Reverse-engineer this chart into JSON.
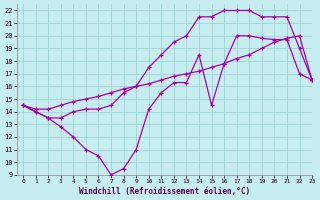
{
  "xlabel": "Windchill (Refroidissement éolien,°C)",
  "xlim": [
    -0.5,
    23
  ],
  "ylim": [
    9,
    22.5
  ],
  "xticks": [
    0,
    1,
    2,
    3,
    4,
    5,
    6,
    7,
    8,
    9,
    10,
    11,
    12,
    13,
    14,
    15,
    16,
    17,
    18,
    19,
    20,
    21,
    22,
    23
  ],
  "yticks": [
    9,
    10,
    11,
    12,
    13,
    14,
    15,
    16,
    17,
    18,
    19,
    20,
    21,
    22
  ],
  "bg_color": "#c6eef0",
  "grid_color": "#a0d4d8",
  "line_color": "#aa00aa",
  "lines": [
    {
      "x": [
        0,
        1,
        2,
        3,
        4,
        5,
        6,
        7,
        8,
        9,
        10,
        11,
        12,
        13,
        14,
        15,
        16,
        17,
        18,
        19,
        20,
        21,
        22,
        23
      ],
      "y": [
        14.5,
        14.0,
        13.5,
        12.8,
        12.0,
        11.0,
        10.5,
        9.0,
        9.5,
        11.0,
        14.2,
        15.5,
        16.3,
        16.3,
        18.5,
        14.5,
        17.8,
        20.0,
        20.0,
        19.8,
        19.7,
        19.7,
        17.0,
        16.5
      ]
    },
    {
      "x": [
        0,
        1,
        2,
        3,
        4,
        5,
        6,
        7,
        8,
        9,
        10,
        11,
        12,
        13,
        14,
        15,
        16,
        17,
        18,
        19,
        20,
        21,
        22,
        23
      ],
      "y": [
        14.5,
        14.0,
        13.5,
        13.5,
        14.0,
        14.2,
        14.2,
        14.5,
        15.5,
        16.0,
        17.5,
        18.5,
        19.5,
        20.0,
        21.5,
        21.5,
        22.0,
        22.0,
        22.0,
        21.5,
        21.5,
        21.5,
        19.0,
        16.5
      ]
    },
    {
      "x": [
        0,
        1,
        2,
        3,
        4,
        5,
        6,
        7,
        8,
        9,
        10,
        11,
        12,
        13,
        14,
        15,
        16,
        17,
        18,
        19,
        20,
        21,
        22,
        23
      ],
      "y": [
        14.5,
        14.2,
        14.2,
        14.5,
        14.8,
        15.0,
        15.2,
        15.5,
        15.8,
        16.0,
        16.2,
        16.5,
        16.8,
        17.0,
        17.2,
        17.5,
        17.8,
        18.2,
        18.5,
        19.0,
        19.5,
        19.8,
        20.0,
        16.5
      ]
    }
  ]
}
